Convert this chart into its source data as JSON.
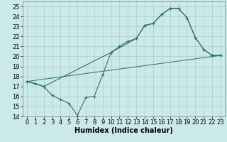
{
  "xlabel": "Humidex (Indice chaleur)",
  "xlim": [
    -0.5,
    23.5
  ],
  "ylim": [
    14,
    25.5
  ],
  "yticks": [
    14,
    15,
    16,
    17,
    18,
    19,
    20,
    21,
    22,
    23,
    24,
    25
  ],
  "xticks": [
    0,
    1,
    2,
    3,
    4,
    5,
    6,
    7,
    8,
    9,
    10,
    11,
    12,
    13,
    14,
    15,
    16,
    17,
    18,
    19,
    20,
    21,
    22,
    23
  ],
  "background_color": "#cce9e9",
  "grid_color": "#aacccc",
  "line_color": "#2a6e6e",
  "line1_x": [
    0,
    1,
    2,
    3,
    4,
    5,
    6,
    7,
    8,
    9,
    10,
    11,
    12,
    13,
    14,
    15,
    16,
    17,
    18,
    19,
    20,
    21,
    22,
    23
  ],
  "line1_y": [
    17.5,
    17.3,
    17.0,
    16.1,
    15.7,
    15.3,
    14.1,
    15.9,
    16.0,
    18.2,
    20.4,
    21.0,
    21.5,
    21.8,
    23.1,
    23.3,
    24.2,
    24.8,
    24.8,
    23.9,
    21.9,
    20.7,
    20.1,
    20.1
  ],
  "line2_x": [
    0,
    2,
    10,
    13,
    14,
    15,
    16,
    17,
    18,
    19,
    20,
    21,
    22,
    23
  ],
  "line2_y": [
    17.5,
    17.0,
    20.4,
    21.8,
    23.1,
    23.3,
    24.2,
    24.8,
    24.8,
    23.9,
    21.9,
    20.7,
    20.1,
    20.1
  ],
  "line3_x": [
    0,
    23
  ],
  "line3_y": [
    17.5,
    20.1
  ],
  "tick_fontsize": 6,
  "xlabel_fontsize": 7
}
